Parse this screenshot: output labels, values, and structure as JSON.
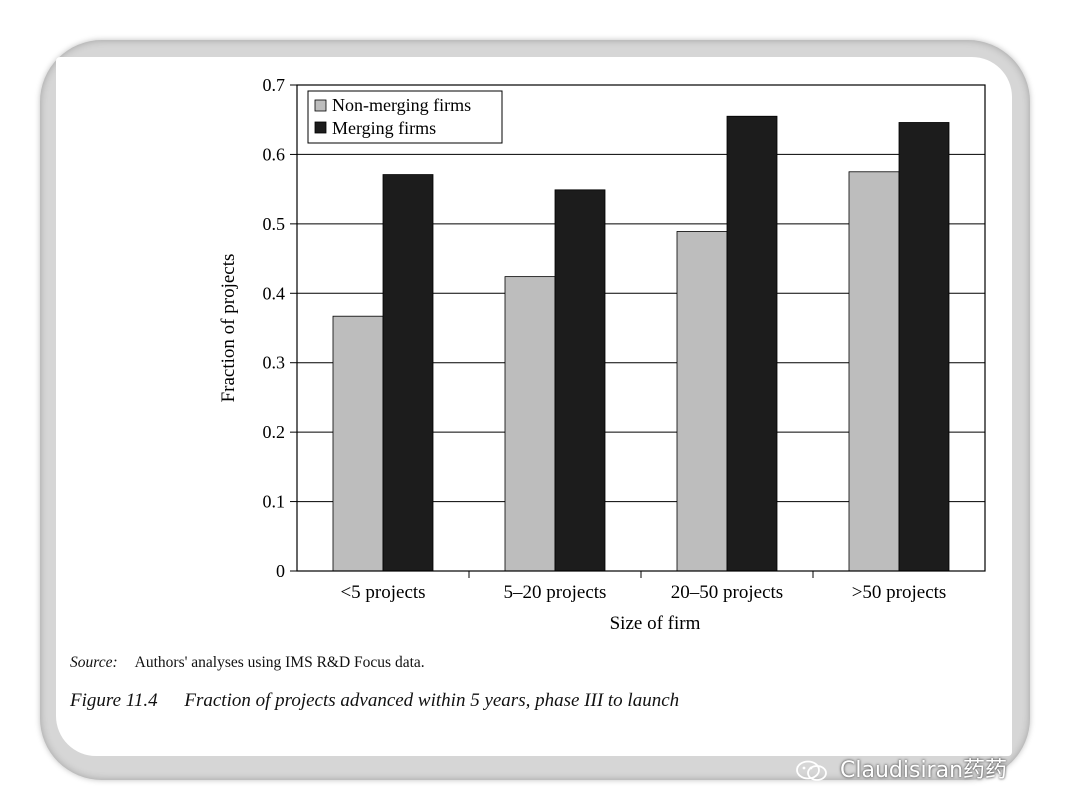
{
  "chart_data": {
    "type": "bar",
    "categories": [
      "<5 projects",
      "5–20 projects",
      "20–50 projects",
      ">50 projects"
    ],
    "series": [
      {
        "name": "Non-merging firms",
        "values": [
          0.367,
          0.424,
          0.489,
          0.575
        ],
        "color": "#bdbdbd"
      },
      {
        "name": "Merging firms",
        "values": [
          0.571,
          0.549,
          0.655,
          0.646
        ],
        "color": "#1c1c1c"
      }
    ],
    "xlabel": "Size of firm",
    "ylabel": "Fraction of projects",
    "ylim": [
      0,
      0.7
    ],
    "yticks": [
      "0",
      "0.1",
      "0.2",
      "0.3",
      "0.4",
      "0.5",
      "0.6",
      "0.7"
    ],
    "grid": true,
    "legend_position": "top-left"
  },
  "source": {
    "label": "Source:",
    "text": "Authors' analyses using IMS R&D Focus data."
  },
  "caption": {
    "number": "Figure 11.4",
    "text": "Fraction of projects advanced within 5 years, phase III to launch"
  },
  "watermark": {
    "text": "Claudisiran药药",
    "icon": "wechat-icon"
  }
}
